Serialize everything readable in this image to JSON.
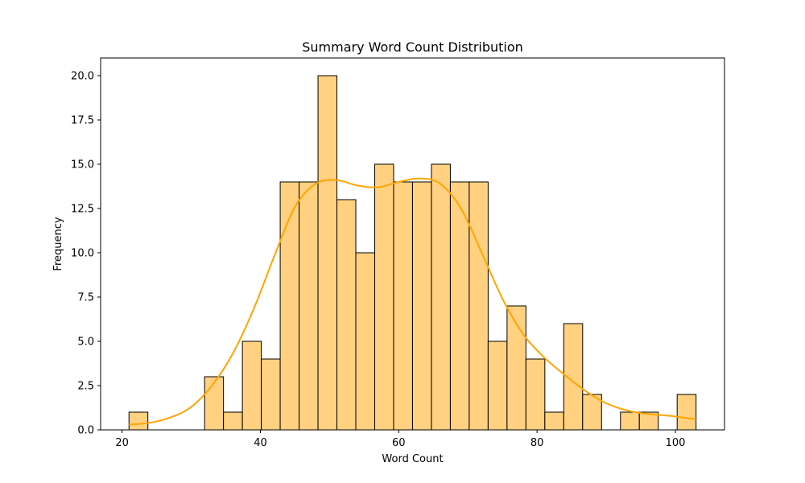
{
  "chart_data": {
    "type": "bar",
    "title": "Summary Word Count Distribution",
    "xlabel": "Word Count",
    "ylabel": "Frequency",
    "xlim": [
      16.9,
      107.1
    ],
    "ylim": [
      0,
      21
    ],
    "xticks": [
      20,
      40,
      60,
      80,
      100
    ],
    "yticks": [
      0.0,
      2.5,
      5.0,
      7.5,
      10.0,
      12.5,
      15.0,
      17.5,
      20.0
    ],
    "xtick_labels": [
      "20",
      "40",
      "60",
      "80",
      "100"
    ],
    "ytick_labels": [
      "0.0",
      "2.5",
      "5.0",
      "7.5",
      "10.0",
      "12.5",
      "15.0",
      "17.5",
      "20.0"
    ],
    "bin_start": 21,
    "bin_width": 2.733,
    "values": [
      1,
      0,
      0,
      0,
      3,
      1,
      5,
      4,
      14,
      14,
      20,
      13,
      10,
      15,
      14,
      14,
      15,
      14,
      14,
      5,
      7,
      4,
      1,
      6,
      2,
      0,
      1,
      1,
      0,
      2
    ],
    "kde": {
      "x": [
        21,
        24,
        27,
        30,
        33,
        36,
        39,
        42,
        45,
        48,
        51,
        54,
        57,
        60,
        63,
        66,
        69,
        72,
        75,
        78,
        81,
        84,
        87,
        90,
        93,
        96,
        99,
        102,
        103
      ],
      "y": [
        0.3,
        0.4,
        0.7,
        1.3,
        2.5,
        4.3,
        6.8,
        9.8,
        12.6,
        13.9,
        14.1,
        13.8,
        13.7,
        14.0,
        14.2,
        13.9,
        12.5,
        10.0,
        7.4,
        5.4,
        4.1,
        3.1,
        2.2,
        1.5,
        1.1,
        0.9,
        0.8,
        0.65,
        0.6
      ]
    },
    "bar_color": "#FFD180",
    "bar_edge_color": "#000000",
    "kde_color": "#FFA500",
    "grid": false,
    "legend": "none"
  }
}
